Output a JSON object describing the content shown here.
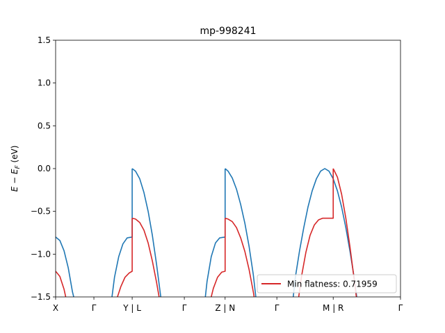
{
  "chart_data": {
    "type": "line",
    "title": "mp-998241",
    "ylabel_text": "E − E",
    "ylabel_sub": "F",
    "ylabel_unit": " (eV)",
    "ylim": [
      -1.5,
      1.5
    ],
    "xlim": [
      0,
      8.2
    ],
    "yticks": [
      1.5,
      1.0,
      0.5,
      0.0,
      -0.5,
      -1.0,
      -1.5
    ],
    "ytick_labels": [
      "1.5",
      "1.0",
      "0.5",
      "0.0",
      "−0.5",
      "−1.0",
      "−1.5"
    ],
    "xticks": [
      {
        "x": 0.0,
        "label": "X"
      },
      {
        "x": 0.91,
        "label": "Γ"
      },
      {
        "x": 1.82,
        "label": "Y | L"
      },
      {
        "x": 3.06,
        "label": "Γ"
      },
      {
        "x": 4.03,
        "label": "Z | N"
      },
      {
        "x": 5.26,
        "label": "Γ"
      },
      {
        "x": 6.6,
        "label": "M | R"
      },
      {
        "x": 8.2,
        "label": "Γ"
      }
    ],
    "legend": {
      "label": "Min flatness: 0.71959",
      "color": "#d62728",
      "placement": "lower-right"
    },
    "series": [
      {
        "name": "",
        "color": "#1f77b4",
        "segments": [
          [
            [
              0.0,
              -0.8
            ],
            [
              0.1,
              -0.84
            ],
            [
              0.2,
              -0.96
            ],
            [
              0.3,
              -1.16
            ],
            [
              0.4,
              -1.44
            ],
            [
              0.43,
              -1.5
            ]
          ],
          [
            [
              1.34,
              -1.5
            ],
            [
              1.4,
              -1.27
            ],
            [
              1.5,
              -1.03
            ],
            [
              1.6,
              -0.88
            ],
            [
              1.7,
              -0.81
            ],
            [
              1.82,
              -0.8
            ],
            [
              1.82,
              0.0
            ]
          ],
          [
            [
              1.82,
              0.0
            ],
            [
              1.9,
              -0.03
            ],
            [
              2.0,
              -0.12
            ],
            [
              2.1,
              -0.28
            ],
            [
              2.2,
              -0.5
            ],
            [
              2.3,
              -0.78
            ],
            [
              2.4,
              -1.12
            ],
            [
              2.5,
              -1.5
            ]
          ],
          [
            [
              3.56,
              -1.5
            ],
            [
              3.6,
              -1.32
            ],
            [
              3.7,
              -1.03
            ],
            [
              3.8,
              -0.87
            ],
            [
              3.9,
              -0.81
            ],
            [
              4.03,
              -0.8
            ],
            [
              4.03,
              0.0
            ]
          ],
          [
            [
              4.03,
              0.0
            ],
            [
              4.1,
              -0.03
            ],
            [
              4.2,
              -0.11
            ],
            [
              4.3,
              -0.24
            ],
            [
              4.4,
              -0.42
            ],
            [
              4.5,
              -0.64
            ],
            [
              4.6,
              -0.91
            ],
            [
              4.7,
              -1.24
            ],
            [
              4.76,
              -1.5
            ]
          ],
          [
            [
              5.65,
              -1.5
            ],
            [
              5.7,
              -1.27
            ],
            [
              5.8,
              -0.96
            ],
            [
              5.9,
              -0.69
            ],
            [
              6.0,
              -0.45
            ],
            [
              6.1,
              -0.26
            ],
            [
              6.2,
              -0.12
            ],
            [
              6.3,
              -0.03
            ],
            [
              6.4,
              0.0
            ],
            [
              6.5,
              -0.03
            ],
            [
              6.6,
              -0.12
            ],
            [
              6.7,
              -0.26
            ],
            [
              6.8,
              -0.45
            ],
            [
              6.9,
              -0.69
            ],
            [
              7.0,
              -0.97
            ],
            [
              7.1,
              -1.28
            ],
            [
              7.16,
              -1.5
            ]
          ]
        ]
      },
      {
        "name": "Min flatness: 0.71959",
        "color": "#d62728",
        "segments": [
          [
            [
              0.0,
              -1.2
            ],
            [
              0.1,
              -1.26
            ],
            [
              0.2,
              -1.41
            ],
            [
              0.24,
              -1.5
            ]
          ],
          [
            [
              1.47,
              -1.5
            ],
            [
              1.55,
              -1.38
            ],
            [
              1.65,
              -1.27
            ],
            [
              1.75,
              -1.22
            ],
            [
              1.82,
              -1.2
            ],
            [
              1.82,
              -0.58
            ]
          ],
          [
            [
              1.82,
              -0.58
            ],
            [
              1.9,
              -0.59
            ],
            [
              2.0,
              -0.63
            ],
            [
              2.1,
              -0.72
            ],
            [
              2.2,
              -0.87
            ],
            [
              2.3,
              -1.08
            ],
            [
              2.4,
              -1.33
            ],
            [
              2.46,
              -1.5
            ]
          ],
          [
            [
              3.7,
              -1.5
            ],
            [
              3.75,
              -1.4
            ],
            [
              3.85,
              -1.27
            ],
            [
              3.95,
              -1.21
            ],
            [
              4.03,
              -1.2
            ],
            [
              4.03,
              -0.58
            ]
          ],
          [
            [
              4.03,
              -0.58
            ],
            [
              4.1,
              -0.59
            ],
            [
              4.2,
              -0.62
            ],
            [
              4.3,
              -0.69
            ],
            [
              4.4,
              -0.81
            ],
            [
              4.5,
              -0.97
            ],
            [
              4.6,
              -1.18
            ],
            [
              4.7,
              -1.44
            ],
            [
              4.72,
              -1.5
            ]
          ],
          [
            [
              5.78,
              -1.5
            ],
            [
              5.85,
              -1.25
            ],
            [
              5.95,
              -0.98
            ],
            [
              6.05,
              -0.78
            ],
            [
              6.15,
              -0.66
            ],
            [
              6.25,
              -0.6
            ],
            [
              6.35,
              -0.58
            ],
            [
              6.6,
              -0.58
            ],
            [
              6.6,
              0.0
            ]
          ],
          [
            [
              6.6,
              0.0
            ],
            [
              6.7,
              -0.1
            ],
            [
              6.8,
              -0.3
            ],
            [
              6.9,
              -0.58
            ],
            [
              7.0,
              -0.92
            ],
            [
              7.1,
              -1.3
            ],
            [
              7.15,
              -1.5
            ]
          ]
        ]
      }
    ]
  }
}
